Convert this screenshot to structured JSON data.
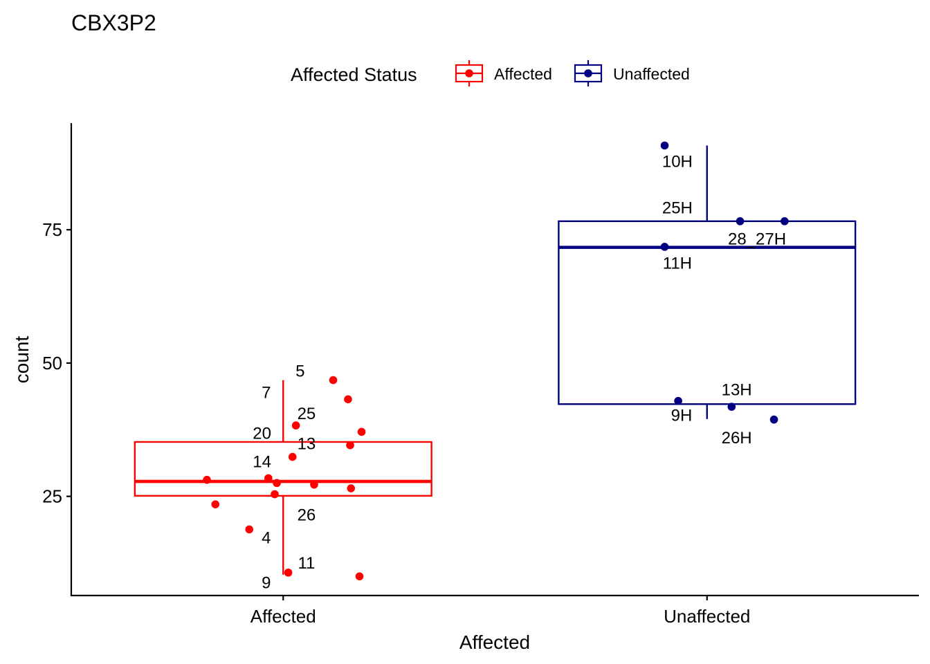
{
  "chart_data": {
    "type": "box",
    "title": "CBX3P2",
    "xlabel": "Affected",
    "ylabel": "count",
    "ylim": [
      6.4,
      95
    ],
    "yticks": [
      25,
      50,
      75
    ],
    "grid": false,
    "legend": {
      "title": "Affected Status",
      "placement": "top",
      "entries": [
        {
          "label": "Affected",
          "color": "#FF0000"
        },
        {
          "label": "Unaffected",
          "color": "#000080"
        }
      ]
    },
    "groups": [
      {
        "category": "Affected",
        "color": "#FF0000",
        "box": {
          "min": 10.3,
          "q1": 25.1,
          "median": 27.8,
          "q3": 35.2,
          "max": 46.8
        },
        "points": [
          {
            "x": -0.18,
            "y": 28.1
          },
          {
            "x": -0.16,
            "y": 23.5
          },
          {
            "x": -0.08,
            "y": 18.8
          },
          {
            "x": -0.035,
            "y": 28.4
          },
          {
            "x": -0.015,
            "y": 27.5
          },
          {
            "x": -0.02,
            "y": 25.4
          },
          {
            "x": 0.012,
            "y": 10.7
          },
          {
            "x": 0.022,
            "y": 32.4
          },
          {
            "x": 0.03,
            "y": 38.3
          },
          {
            "x": 0.073,
            "y": 27.2
          },
          {
            "x": 0.118,
            "y": 46.8
          },
          {
            "x": 0.153,
            "y": 43.2
          },
          {
            "x": 0.158,
            "y": 34.6
          },
          {
            "x": 0.16,
            "y": 26.5
          },
          {
            "x": 0.18,
            "y": 10.0
          },
          {
            "x": 0.185,
            "y": 37.1
          }
        ],
        "labels": [
          {
            "text": "5",
            "x": 0.04,
            "y": 48.5
          },
          {
            "text": "7",
            "x": -0.04,
            "y": 44.5
          },
          {
            "text": "25",
            "x": 0.055,
            "y": 40.5
          },
          {
            "text": "20",
            "x": -0.05,
            "y": 36.8
          },
          {
            "text": "13",
            "x": 0.055,
            "y": 34.9
          },
          {
            "text": "14",
            "x": -0.05,
            "y": 31.5
          },
          {
            "text": "26",
            "x": 0.055,
            "y": 21.5
          },
          {
            "text": "4",
            "x": -0.04,
            "y": 17.2
          },
          {
            "text": "11",
            "x": 0.055,
            "y": 12.5
          },
          {
            "text": "9",
            "x": -0.04,
            "y": 8.8
          }
        ]
      },
      {
        "category": "Unaffected",
        "color": "#000080",
        "box": {
          "min": 39.5,
          "q1": 42.3,
          "median": 71.7,
          "q3": 76.6,
          "max": 90.8
        },
        "points": [
          {
            "x": -0.1,
            "y": 71.8
          },
          {
            "x": -0.1,
            "y": 90.8
          },
          {
            "x": -0.068,
            "y": 42.9
          },
          {
            "x": 0.058,
            "y": 41.8
          },
          {
            "x": 0.078,
            "y": 76.6
          },
          {
            "x": 0.158,
            "y": 39.4
          },
          {
            "x": 0.183,
            "y": 76.6
          }
        ],
        "labels": [
          {
            "text": "10H",
            "x": -0.07,
            "y": 87.8
          },
          {
            "text": "25H",
            "x": -0.07,
            "y": 79.1
          },
          {
            "text": "28_27H",
            "x": 0.118,
            "y": 73.3
          },
          {
            "text": "11H",
            "x": -0.07,
            "y": 68.7
          },
          {
            "text": "13H",
            "x": 0.07,
            "y": 45.0
          },
          {
            "text": "9H",
            "x": -0.06,
            "y": 40.2
          },
          {
            "text": "26H",
            "x": 0.07,
            "y": 36.0
          }
        ]
      }
    ]
  }
}
